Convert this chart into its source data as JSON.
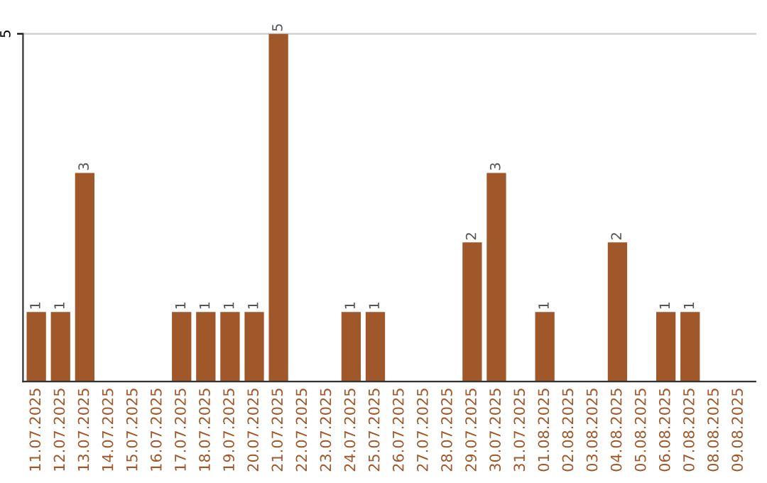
{
  "chart_data": {
    "type": "bar",
    "categories": [
      "11.07.2025",
      "12.07.2025",
      "13.07.2025",
      "14.07.2025",
      "15.07.2025",
      "16.07.2025",
      "17.07.2025",
      "18.07.2025",
      "19.07.2025",
      "20.07.2025",
      "21.07.2025",
      "22.07.2025",
      "23.07.2025",
      "24.07.2025",
      "25.07.2025",
      "26.07.2025",
      "27.07.2025",
      "28.07.2025",
      "29.07.2025",
      "30.07.2025",
      "31.07.2025",
      "01.08.2025",
      "02.08.2025",
      "03.08.2025",
      "04.08.2025",
      "05.08.2025",
      "06.08.2025",
      "07.08.2025",
      "08.08.2025",
      "09.08.2025"
    ],
    "values": [
      1,
      1,
      3,
      0,
      0,
      0,
      1,
      1,
      1,
      1,
      5,
      0,
      0,
      1,
      1,
      0,
      0,
      0,
      2,
      3,
      0,
      1,
      0,
      0,
      2,
      0,
      1,
      1,
      0,
      0
    ],
    "value_labels": [
      "1",
      "1",
      "3",
      null,
      null,
      null,
      "1",
      "1",
      "1",
      "1",
      "5",
      null,
      null,
      "1",
      "1",
      null,
      null,
      null,
      "2",
      "3",
      null,
      "1",
      null,
      null,
      "2",
      null,
      "1",
      "1",
      null,
      null
    ],
    "color": "#a0572a",
    "ylim": [
      0,
      5
    ],
    "yticks": [
      5
    ],
    "ref_lines": [
      {
        "axis": "y",
        "value": 5,
        "color": "#cccccc"
      }
    ]
  }
}
